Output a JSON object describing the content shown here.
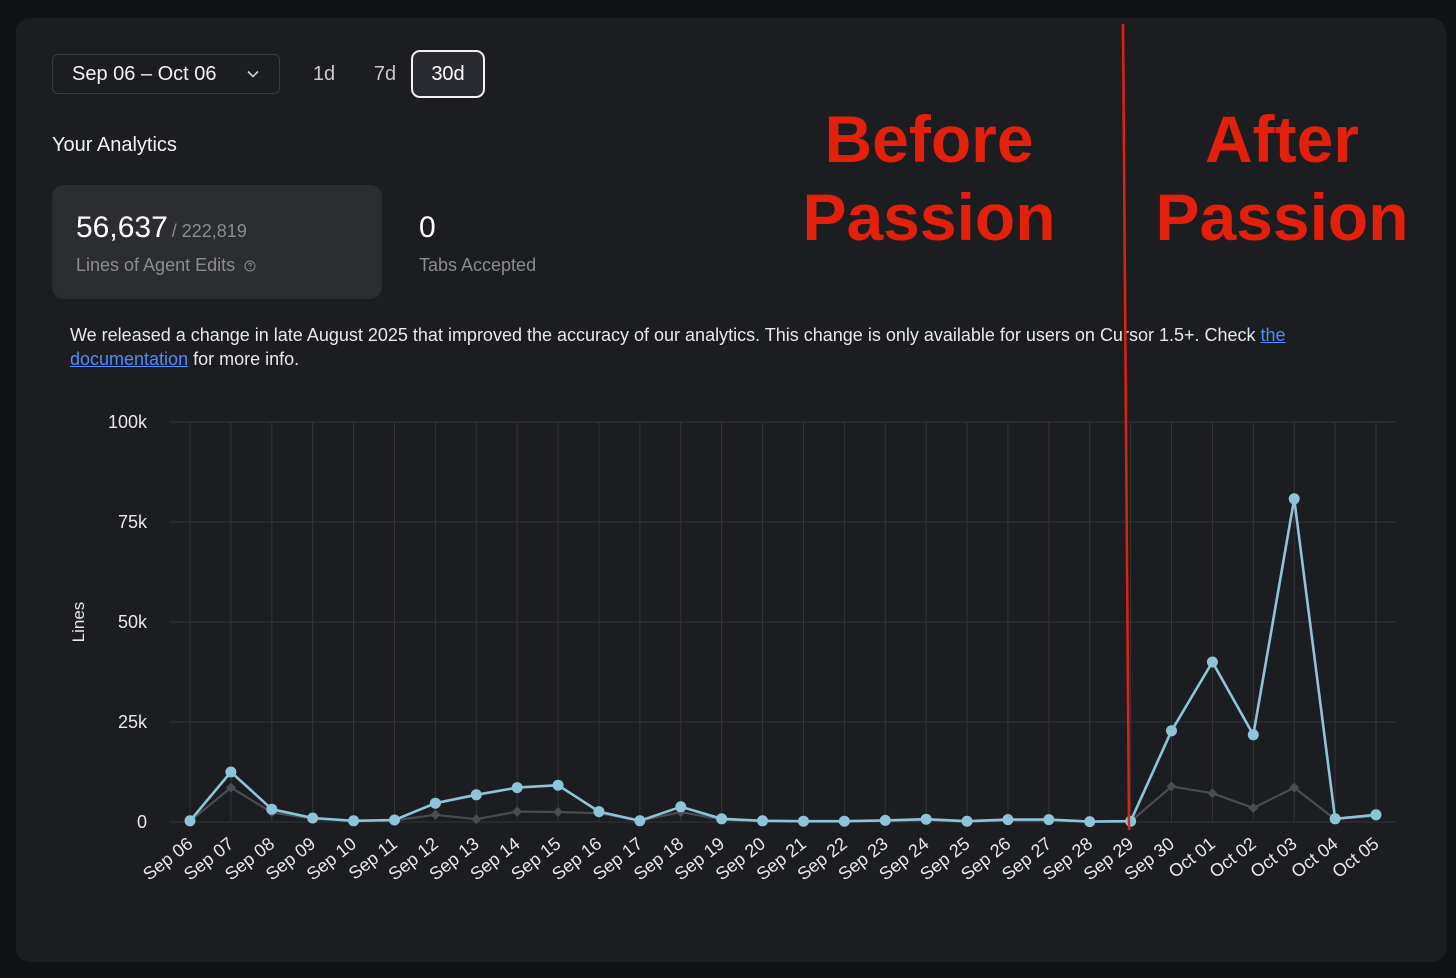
{
  "filters": {
    "date_range": "Sep 06 – Oct 06",
    "ranges": [
      "1d",
      "7d",
      "30d"
    ],
    "active_range": "30d"
  },
  "analytics": {
    "title": "Your Analytics",
    "agent_edits": {
      "value": "56,637",
      "total": "/ 222,819",
      "label": "Lines of Agent Edits"
    },
    "tabs_accepted": {
      "value": "0",
      "label": "Tabs Accepted"
    }
  },
  "notice": {
    "text": "We released a change in late August 2025 that improved the accuracy of our analytics. This change is only available for users on Cursor 1.5+. Check ",
    "link": "the documentation",
    "suffix": " for more info."
  },
  "annotations": {
    "before": [
      "Before",
      "Passion"
    ],
    "after": [
      "After",
      "Passion"
    ],
    "divider_category": "Sep 29",
    "color": "#e3200b"
  },
  "chart_data": {
    "type": "line",
    "ylabel": "Lines",
    "ylim": [
      0,
      100000
    ],
    "yticks": [
      0,
      25000,
      50000,
      75000,
      100000
    ],
    "ytick_labels": [
      "0",
      "25k",
      "50k",
      "75k",
      "100k"
    ],
    "grid": true,
    "categories": [
      "Sep 06",
      "Sep 07",
      "Sep 08",
      "Sep 09",
      "Sep 10",
      "Sep 11",
      "Sep 12",
      "Sep 13",
      "Sep 14",
      "Sep 15",
      "Sep 16",
      "Sep 17",
      "Sep 18",
      "Sep 19",
      "Sep 20",
      "Sep 21",
      "Sep 22",
      "Sep 23",
      "Sep 24",
      "Sep 25",
      "Sep 26",
      "Sep 27",
      "Sep 28",
      "Sep 29",
      "Sep 30",
      "Oct 01",
      "Oct 02",
      "Oct 03",
      "Oct 04",
      "Oct 05"
    ],
    "series": [
      {
        "color": "#8ec4d8",
        "values": [
          300,
          12500,
          3200,
          1000,
          300,
          500,
          4700,
          6800,
          8600,
          9200,
          2600,
          300,
          3800,
          800,
          300,
          200,
          200,
          400,
          700,
          200,
          600,
          600,
          100,
          200,
          22800,
          40000,
          21800,
          80800,
          800,
          1800
        ]
      },
      {
        "color": "#4a4c55",
        "values": [
          200,
          8600,
          2400,
          800,
          300,
          400,
          1800,
          700,
          2600,
          2500,
          2200,
          300,
          2500,
          600,
          200,
          100,
          100,
          300,
          500,
          100,
          400,
          400,
          100,
          100,
          8900,
          7200,
          3500,
          8600,
          700,
          1500
        ]
      }
    ]
  }
}
